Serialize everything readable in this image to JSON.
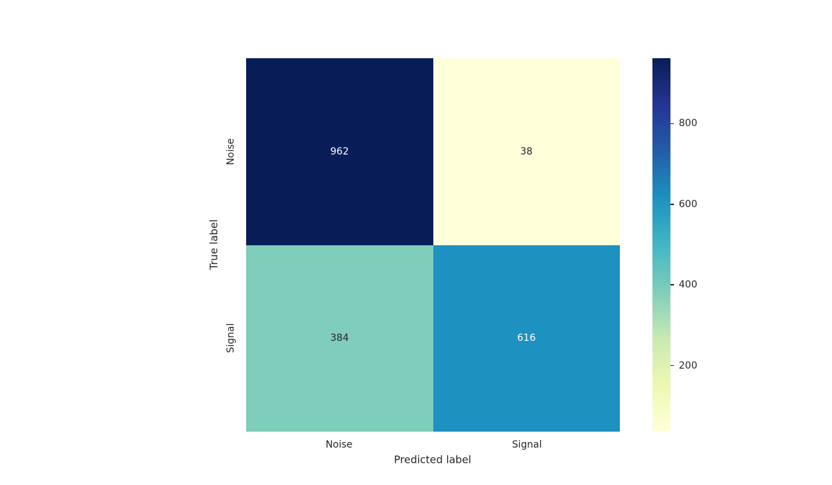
{
  "figure": {
    "background": "#ffffff",
    "text_color": "#262626"
  },
  "chart_data": {
    "type": "heatmap",
    "title": "",
    "xlabel": "Predicted label",
    "ylabel": "True label",
    "x_categories": [
      "Noise",
      "Signal"
    ],
    "y_categories": [
      "Noise",
      "Signal"
    ],
    "values": [
      [
        962,
        38
      ],
      [
        384,
        616
      ]
    ],
    "colormap": "YlGnBu",
    "colormap_stops": [
      "#ffffd9",
      "#edf8b1",
      "#c7e9b4",
      "#7fcdbb",
      "#41b6c4",
      "#1d91c0",
      "#225ea8",
      "#253494",
      "#081d58"
    ],
    "vmin": 38,
    "vmax": 962,
    "colorbar_ticks": [
      200,
      400,
      600,
      800
    ],
    "cell_colors": [
      [
        "#081d58",
        "#ffffd9"
      ],
      [
        "#7fcdbb",
        "#1d91c0"
      ]
    ],
    "annot_colors": [
      [
        "#ffffff",
        "#262626"
      ],
      [
        "#262626",
        "#ffffff"
      ]
    ],
    "grid": false,
    "legend_position": "right-colorbar"
  }
}
